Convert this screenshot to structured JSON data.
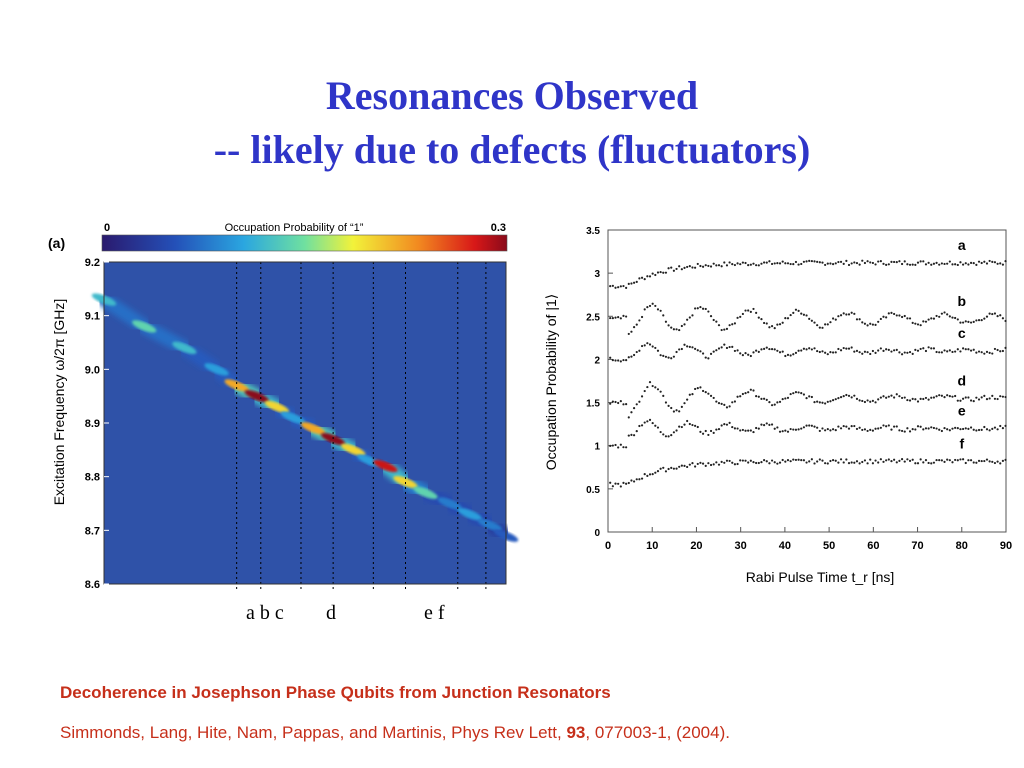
{
  "slide": {
    "title_line1": "Resonances Observed",
    "title_line2": "-- likely due to defects (fluctuators)",
    "below_labels": [
      "a b c",
      "d",
      "e f"
    ],
    "citation_title": "Decoherence in Josephson Phase Qubits from Junction Resonators",
    "citation_authors": "Simmonds, Lang, Hite, Nam, Pappas, and Martinis, Phys Rev Lett, ",
    "citation_volume": "93",
    "citation_rest": ", 077003-1, (2004).",
    "colors": {
      "title": "#2f35c8",
      "citation": "#c62f1a"
    }
  },
  "chart_data": [
    {
      "type": "heatmap",
      "panel_label": "(a)",
      "colorbar_title": "Occupation Probability of “1”",
      "colorbar_min_label": "0",
      "colorbar_max_label": "0.3",
      "ylabel": "Excitation Frequency ω/2π [GHz]",
      "ylim": [
        8.6,
        9.2
      ],
      "yticks": [
        "9.2",
        "9.1",
        "9.0",
        "8.9",
        "8.8",
        "8.7",
        "8.6"
      ],
      "grid": false,
      "resonance_ridge": [
        {
          "x": 0.0,
          "y": 9.13,
          "p": 0.12
        },
        {
          "x": 0.1,
          "y": 9.08,
          "p": 0.14
        },
        {
          "x": 0.2,
          "y": 9.04,
          "p": 0.12
        },
        {
          "x": 0.28,
          "y": 9.0,
          "p": 0.1
        },
        {
          "x": 0.33,
          "y": 8.97,
          "p": 0.22
        },
        {
          "x": 0.38,
          "y": 8.95,
          "p": 0.3
        },
        {
          "x": 0.43,
          "y": 8.93,
          "p": 0.2
        },
        {
          "x": 0.47,
          "y": 8.91,
          "p": 0.1
        },
        {
          "x": 0.52,
          "y": 8.89,
          "p": 0.22
        },
        {
          "x": 0.57,
          "y": 8.87,
          "p": 0.3
        },
        {
          "x": 0.62,
          "y": 8.85,
          "p": 0.2
        },
        {
          "x": 0.66,
          "y": 8.83,
          "p": 0.1
        },
        {
          "x": 0.7,
          "y": 8.82,
          "p": 0.28
        },
        {
          "x": 0.75,
          "y": 8.79,
          "p": 0.2
        },
        {
          "x": 0.8,
          "y": 8.77,
          "p": 0.14
        },
        {
          "x": 0.86,
          "y": 8.75,
          "p": 0.08
        },
        {
          "x": 0.91,
          "y": 8.73,
          "p": 0.1
        },
        {
          "x": 0.96,
          "y": 8.71,
          "p": 0.08
        },
        {
          "x": 1.0,
          "y": 8.69,
          "p": 0.06
        }
      ],
      "marker_lines": [
        {
          "label": "a",
          "x": 0.33
        },
        {
          "label": "b",
          "x": 0.39
        },
        {
          "label": "c",
          "x": 0.49
        },
        {
          "label": "d",
          "x": 0.57
        },
        {
          "label": "e",
          "x": 0.67
        },
        {
          "label": "f",
          "x": 0.75
        },
        {
          "label": "",
          "x": 0.88
        },
        {
          "label": "",
          "x": 0.95
        }
      ]
    },
    {
      "type": "scatter",
      "xlabel": "Rabi Pulse Time t_r [ns]",
      "ylabel": "Occupation Probability of |1⟩",
      "xlim": [
        0,
        90
      ],
      "ylim": [
        0,
        3.5
      ],
      "xticks": [
        "0",
        "10",
        "20",
        "30",
        "40",
        "50",
        "60",
        "70",
        "80",
        "90"
      ],
      "yticks": [
        "0",
        "0.5",
        "1",
        "1.5",
        "2",
        "2.5",
        "3",
        "3.5"
      ],
      "grid": false,
      "series": [
        {
          "name": "a",
          "baseline": 2.85,
          "plateau": 3.12,
          "amplitude": 0.0,
          "period": 10,
          "decay": 8
        },
        {
          "name": "b",
          "baseline": 2.5,
          "plateau": 2.47,
          "amplitude": 0.17,
          "period": 11,
          "decay": 60
        },
        {
          "name": "c",
          "baseline": 2.0,
          "plateau": 2.1,
          "amplitude": 0.1,
          "period": 9,
          "decay": 40
        },
        {
          "name": "d",
          "baseline": 1.5,
          "plateau": 1.55,
          "amplitude": 0.2,
          "period": 11,
          "decay": 30
        },
        {
          "name": "e",
          "baseline": 1.0,
          "plateau": 1.2,
          "amplitude": 0.1,
          "period": 9,
          "decay": 30
        },
        {
          "name": "f",
          "baseline": 0.55,
          "plateau": 0.82,
          "amplitude": 0.0,
          "period": 10,
          "decay": 8
        }
      ],
      "pulse_onset_x": 4.5
    }
  ]
}
